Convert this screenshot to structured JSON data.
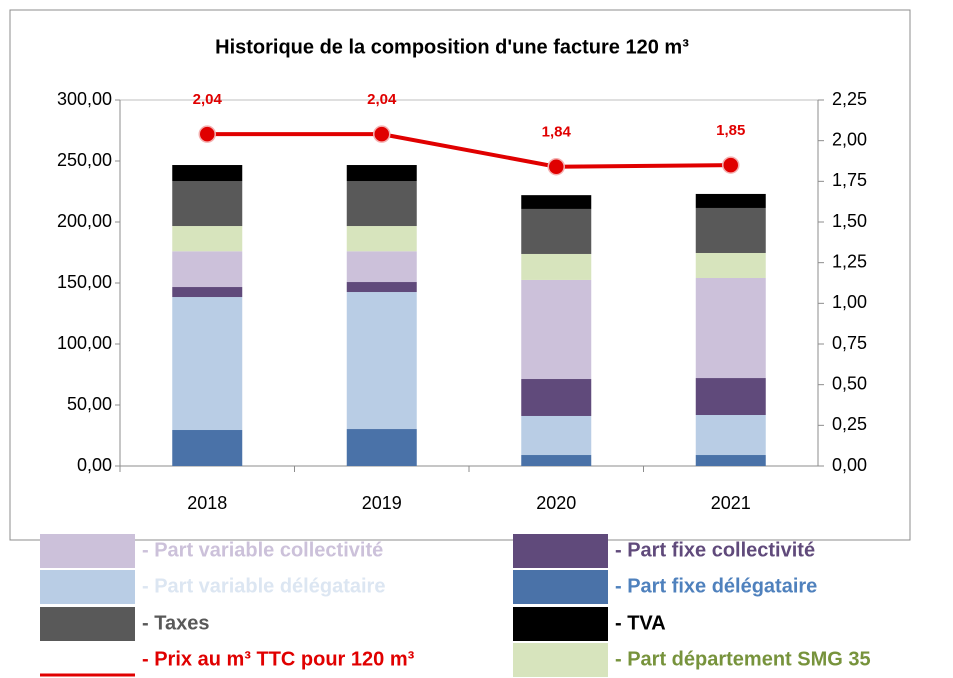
{
  "chart_data": {
    "type": "bar",
    "stacked": true,
    "title": "Historique de la composition d'une facture 120 m³",
    "categories": [
      "2018",
      "2019",
      "2020",
      "2021"
    ],
    "series": [
      {
        "name": "- Part fixe délégataire",
        "color": "#4a72a8",
        "text_color": "#4f81bd",
        "values": [
          29.5,
          30.3,
          9,
          9
        ]
      },
      {
        "name": "- Part variable délégataire",
        "color": "#b9cde5",
        "text_color": "#dce6f2",
        "values": [
          109,
          112.3,
          32,
          32.8
        ]
      },
      {
        "name": "- Part fixe collectivité",
        "color": "#604a7b",
        "text_color": "#604a7b",
        "values": [
          8.2,
          8.2,
          30.3,
          30.3
        ]
      },
      {
        "name": "- Part variable collectivité",
        "color": "#ccc1da",
        "text_color": "#ccc1da",
        "values": [
          29.3,
          25.2,
          81.2,
          82
        ]
      },
      {
        "name": "- Part département SMG 35",
        "color": "#d7e4bd",
        "text_color": "#77933c",
        "values": [
          20.7,
          20.7,
          21.3,
          20.5
        ]
      },
      {
        "name": "- Taxes",
        "color": "#595959",
        "text_color": "#595959",
        "values": [
          36.9,
          36.9,
          36.9,
          36.9
        ]
      },
      {
        "name": "- TVA",
        "color": "#000000",
        "text_color": "#000000",
        "values": [
          13.1,
          13.1,
          11.3,
          11.5
        ]
      },
      {
        "name": "- Prix au m³ TTC pour 120 m³",
        "color": "#e00000",
        "text_color": "#e00000",
        "type": "line",
        "axis": "y2",
        "values": [
          2.04,
          2.04,
          1.84,
          1.85
        ],
        "value_labels": [
          "2,04",
          "2,04",
          "1,84",
          "1,85"
        ]
      }
    ],
    "ylim": [
      0,
      300
    ],
    "yticks": [
      {
        "value": 0,
        "label": "0,00"
      },
      {
        "value": 50,
        "label": "50,00"
      },
      {
        "value": 100,
        "label": "100,00"
      },
      {
        "value": 150,
        "label": "150,00"
      },
      {
        "value": 200,
        "label": "200,00"
      },
      {
        "value": 250,
        "label": "250,00"
      },
      {
        "value": 300,
        "label": "300,00"
      }
    ],
    "y2lim": [
      0,
      2.25
    ],
    "y2ticks": [
      {
        "value": 0,
        "label": "0,00"
      },
      {
        "value": 0.25,
        "label": "0,25"
      },
      {
        "value": 0.5,
        "label": "0,50"
      },
      {
        "value": 0.75,
        "label": "0,75"
      },
      {
        "value": 1,
        "label": "1,00"
      },
      {
        "value": 1.25,
        "label": "1,25"
      },
      {
        "value": 1.5,
        "label": "1,50"
      },
      {
        "value": 1.75,
        "label": "1,75"
      },
      {
        "value": 2,
        "label": "2,00"
      },
      {
        "value": 2.25,
        "label": "2,25"
      }
    ],
    "grid": false
  }
}
